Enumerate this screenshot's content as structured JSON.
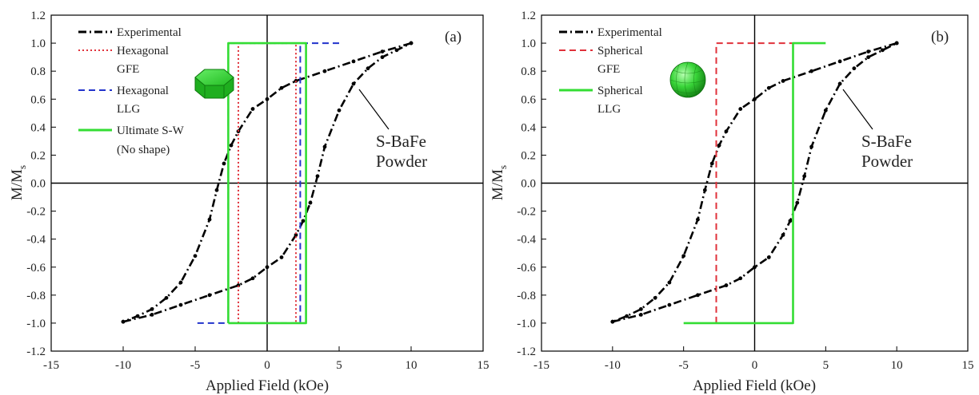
{
  "chart_data": [
    {
      "type": "line",
      "panel_label": "(a)",
      "xlabel": "Applied Field (kOe)",
      "ylabel": "M/M",
      "ylabel_sub": "s",
      "xlim": [
        -15,
        15
      ],
      "ylim": [
        -1.2,
        1.2
      ],
      "xticks": [
        -15,
        -10,
        -5,
        0,
        5,
        10,
        15
      ],
      "yticks": [
        -1.2,
        -1.0,
        -0.8,
        -0.6,
        -0.4,
        -0.2,
        0.0,
        0.2,
        0.4,
        0.6,
        0.8,
        1.0,
        1.2
      ],
      "ytick_labels": [
        "-1.2",
        "-1.0",
        "-0.8",
        "-0.6",
        "-0.4",
        "-0.2",
        "0.0",
        "0.2",
        "0.4",
        "0.6",
        "0.8",
        "1.0",
        "1.2"
      ],
      "zero_lines": true,
      "grid": false,
      "legend_position": "top-left",
      "annotation": {
        "lines": [
          "S-BaFe",
          "Powder"
        ],
        "x": 7.2,
        "y": 0.55
      },
      "inset_icon": "hexagonal-prism-icon",
      "series": [
        {
          "name": "Experimental",
          "style": "dash-dot",
          "color": "#000000",
          "branches": [
            {
              "x": [
                10,
                8,
                6,
                4,
                2,
                1,
                0,
                -1,
                -2,
                -2.5,
                -3,
                -3.5,
                -4,
                -5,
                -6,
                -7,
                -8,
                -9,
                -10
              ],
              "y": [
                1.0,
                0.94,
                0.87,
                0.8,
                0.73,
                0.68,
                0.6,
                0.53,
                0.37,
                0.27,
                0.14,
                -0.05,
                -0.26,
                -0.52,
                -0.71,
                -0.82,
                -0.9,
                -0.95,
                -0.99
              ]
            },
            {
              "x": [
                -10,
                -8,
                -6,
                -4,
                -2,
                -1,
                0,
                1,
                2,
                2.5,
                3,
                3.5,
                4,
                5,
                6,
                7,
                8,
                9,
                10
              ],
              "y": [
                -0.99,
                -0.94,
                -0.87,
                -0.8,
                -0.73,
                -0.68,
                -0.6,
                -0.53,
                -0.37,
                -0.27,
                -0.14,
                0.05,
                0.26,
                0.52,
                0.71,
                0.82,
                0.9,
                0.95,
                1.0
              ]
            }
          ]
        },
        {
          "name_lines": [
            "Hexagonal",
            "GFE"
          ],
          "style": "dotted",
          "color": "#e0303a",
          "branches": [
            {
              "x": [
                -2,
                -2,
                2,
                2
              ],
              "y": [
                -1.0,
                1.0,
                1.0,
                -1.0
              ]
            }
          ]
        },
        {
          "name_lines": [
            "Hexagonal",
            "LLG"
          ],
          "style": "dashed",
          "color": "#2233cc",
          "branches": [
            {
              "x": [
                5,
                2.3,
                2.3,
                -5
              ],
              "y": [
                1.0,
                1.0,
                -1.0,
                -1.0
              ]
            },
            {
              "x": [
                -2.7,
                -2.7,
                2.3
              ],
              "y": [
                -1.0,
                1.0,
                1.0
              ]
            }
          ]
        },
        {
          "name_lines": [
            "Ultimate S-W",
            "(No shape)"
          ],
          "style": "solid",
          "color": "#33dd33",
          "branches": [
            {
              "x": [
                -2.7,
                -2.7,
                2.7,
                2.7,
                -2.7
              ],
              "y": [
                -1.0,
                1.0,
                1.0,
                -1.0,
                -1.0
              ]
            }
          ]
        }
      ]
    },
    {
      "type": "line",
      "panel_label": "(b)",
      "xlabel": "Applied Field (kOe)",
      "ylabel": "M/M",
      "ylabel_sub": "s",
      "xlim": [
        -15,
        15
      ],
      "ylim": [
        -1.2,
        1.2
      ],
      "xticks": [
        -15,
        -10,
        -5,
        0,
        5,
        10,
        15
      ],
      "yticks": [
        -1.2,
        -1.0,
        -0.8,
        -0.6,
        -0.4,
        -0.2,
        0.0,
        0.2,
        0.4,
        0.6,
        0.8,
        1.0,
        1.2
      ],
      "ytick_labels": [
        "-1.2",
        "-1.0",
        "-0.8",
        "-0.6",
        "-0.4",
        "-0.2",
        "0.0",
        "0.2",
        "0.4",
        "0.6",
        "0.8",
        "1.0",
        "1.2"
      ],
      "zero_lines": true,
      "grid": false,
      "legend_position": "top-left",
      "annotation": {
        "lines": [
          "S-BaFe",
          "Powder"
        ],
        "x": 7.2,
        "y": 0.55
      },
      "inset_icon": "sphere-icon",
      "series": [
        {
          "name": "Experimental",
          "style": "dash-dot",
          "color": "#000000",
          "branches": [
            {
              "x": [
                10,
                8,
                6,
                4,
                2,
                1,
                0,
                -1,
                -2,
                -2.5,
                -3,
                -3.5,
                -4,
                -5,
                -6,
                -7,
                -8,
                -9,
                -10
              ],
              "y": [
                1.0,
                0.94,
                0.87,
                0.8,
                0.73,
                0.68,
                0.6,
                0.53,
                0.37,
                0.27,
                0.14,
                -0.05,
                -0.26,
                -0.52,
                -0.71,
                -0.82,
                -0.9,
                -0.95,
                -0.99
              ]
            },
            {
              "x": [
                -10,
                -8,
                -6,
                -4,
                -2,
                -1,
                0,
                1,
                2,
                2.5,
                3,
                3.5,
                4,
                5,
                6,
                7,
                8,
                9,
                10
              ],
              "y": [
                -0.99,
                -0.94,
                -0.87,
                -0.8,
                -0.73,
                -0.68,
                -0.6,
                -0.53,
                -0.37,
                -0.27,
                -0.14,
                0.05,
                0.26,
                0.52,
                0.71,
                0.82,
                0.9,
                0.95,
                1.0
              ]
            }
          ]
        },
        {
          "name_lines": [
            "Spherical",
            "GFE"
          ],
          "style": "dashed",
          "color": "#e0303a",
          "branches": [
            {
              "x": [
                -2.7,
                -2.7,
                2.7
              ],
              "y": [
                -1.0,
                1.0,
                1.0
              ]
            }
          ]
        },
        {
          "name_lines": [
            "Spherical",
            "LLG"
          ],
          "style": "solid",
          "color": "#33dd33",
          "branches": [
            {
              "x": [
                5,
                2.7,
                2.7,
                -5
              ],
              "y": [
                1.0,
                1.0,
                -1.0,
                -1.0
              ]
            }
          ]
        }
      ]
    }
  ]
}
